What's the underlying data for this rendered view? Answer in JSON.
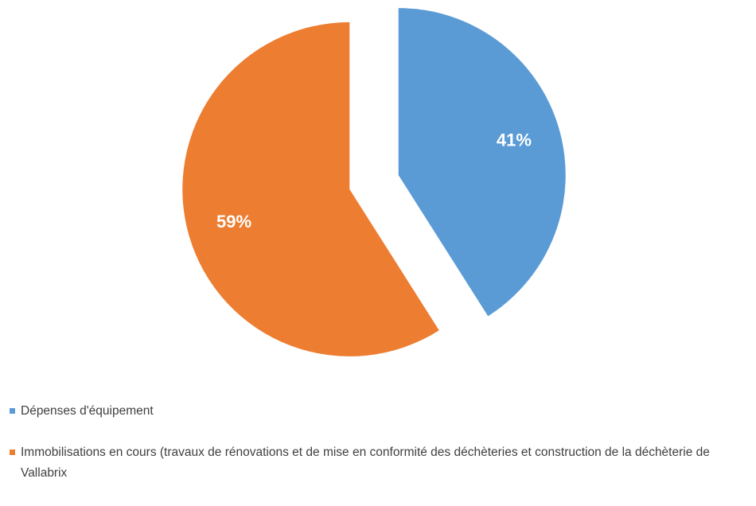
{
  "chart_data": {
    "type": "pie",
    "categories": [
      "Dépenses d'équipement",
      "Immobilisations en cours (travaux de rénovations et de mise en conformité des déchèteries et construction de la déchèterie de Vallabrix"
    ],
    "values": [
      41,
      59
    ],
    "value_labels": [
      "41%",
      "59%"
    ],
    "colors": [
      "#5b9bd5",
      "#ed7d31"
    ],
    "legend": "bottom"
  }
}
